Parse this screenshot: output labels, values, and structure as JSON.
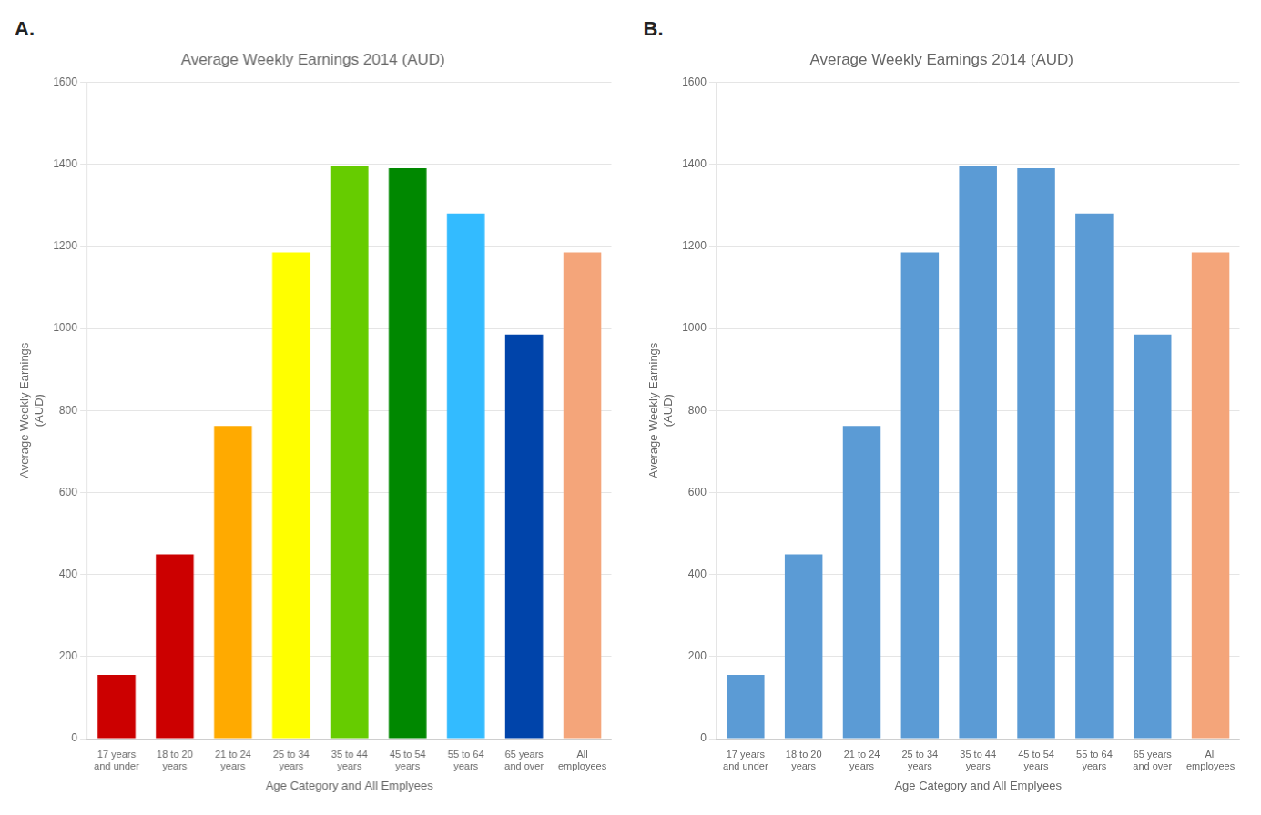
{
  "chart_data": [
    {
      "type": "bar",
      "title": "Average Weekly Earnings 2014 (AUD)",
      "ylabel": "Average Weekly Earnings\n(AUD)",
      "xlabel": "Age Category and All Emplyees",
      "annotations": [
        "A."
      ],
      "categories": [
        "17 years\nand under",
        "18 to 20\nyears",
        "21 to 24\nyears",
        "25 to 34\nyears",
        "35 to 44\nyears",
        "45 to 54\nyears",
        "55 to 64\nyears",
        "65 years\nand over",
        "All\nemployees"
      ],
      "values": [
        155,
        449,
        762,
        1185,
        1395,
        1390,
        1280,
        985,
        1185
      ],
      "colors": [
        "#cc0000",
        "#cc0000",
        "#ffaa00",
        "#ffff00",
        "#66cc00",
        "#008800",
        "#33bbff",
        "#0044aa",
        "#f4a57a"
      ],
      "ylim": [
        0,
        1600
      ],
      "yticks": [
        0,
        200,
        400,
        600,
        800,
        1000,
        1200,
        1400,
        1600
      ],
      "grid": true
    },
    {
      "type": "bar",
      "title": "Average Weekly Earnings 2014 (AUD)",
      "ylabel": "Average Weekly Earnings\n(AUD)",
      "xlabel": "Age Category and All Emplyees",
      "annotations": [
        "B."
      ],
      "categories": [
        "17 years\nand under",
        "18 to 20\nyears",
        "21 to 24\nyears",
        "25 to 34\nyears",
        "35 to 44\nyears",
        "45 to 54\nyears",
        "55 to 64\nyears",
        "65 years\nand over",
        "All\nemployees"
      ],
      "values": [
        155,
        449,
        762,
        1185,
        1395,
        1390,
        1280,
        985,
        1185
      ],
      "colors": [
        "#5b9bd5",
        "#5b9bd5",
        "#5b9bd5",
        "#5b9bd5",
        "#5b9bd5",
        "#5b9bd5",
        "#5b9bd5",
        "#5b9bd5",
        "#f4a57a"
      ],
      "ylim": [
        0,
        1600
      ],
      "yticks": [
        0,
        200,
        400,
        600,
        800,
        1000,
        1200,
        1400,
        1600
      ],
      "grid": true
    }
  ]
}
